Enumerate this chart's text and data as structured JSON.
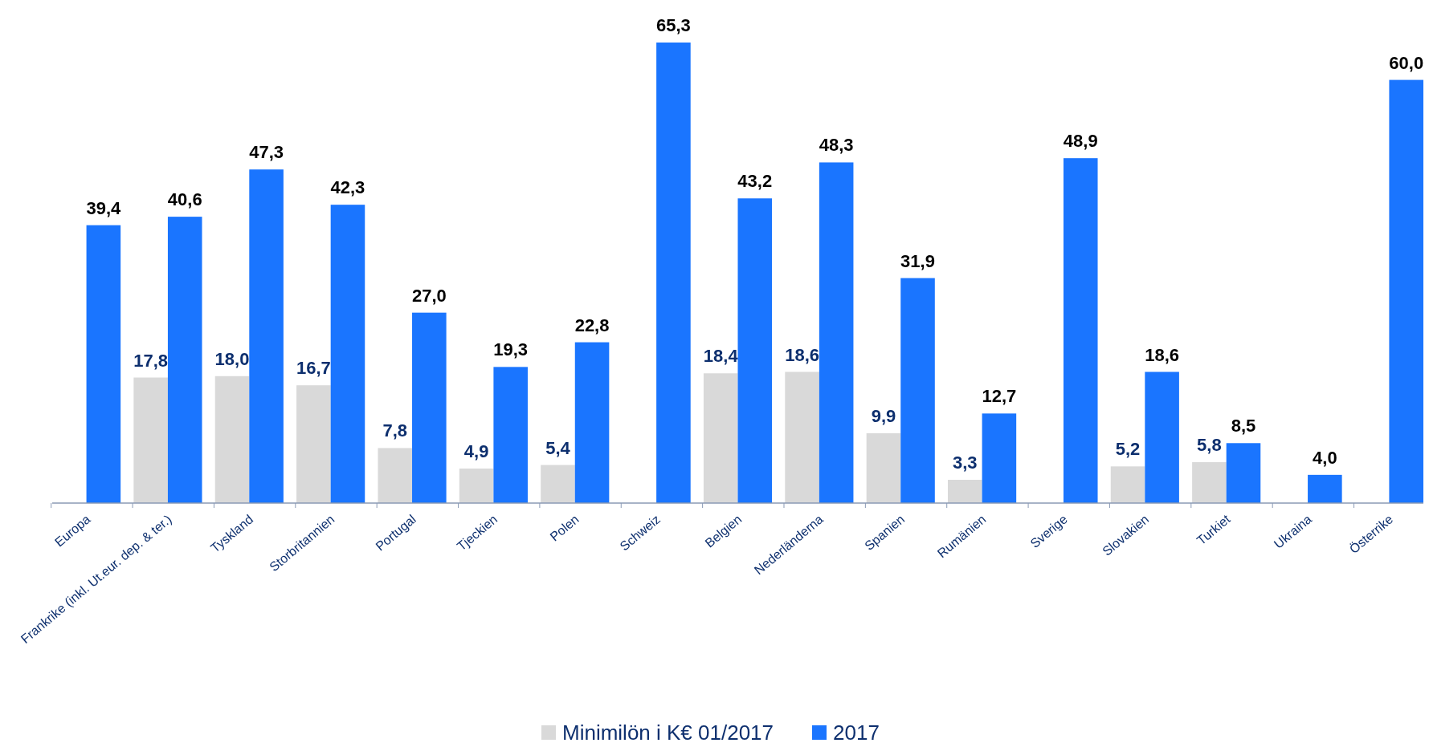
{
  "chart_data": {
    "type": "bar",
    "categories": [
      "Europa",
      "Frankrike (inkl. Ut.eur. dep. & ter.)",
      "Tyskland",
      "Storbritannien",
      "Portugal",
      "Tjeckien",
      "Polen",
      "Schweiz",
      "Belgien",
      "Nederländerna",
      "Spanien",
      "Rumänien",
      "Sverige",
      "Slovakien",
      "Turkiet",
      "Ukraina",
      "Österrike"
    ],
    "series": [
      {
        "name": "Minimilön i K€ 01/2017",
        "color": "#d9d9d9",
        "values": [
          null,
          17.8,
          18.0,
          16.7,
          7.8,
          4.9,
          5.4,
          null,
          18.4,
          18.6,
          9.9,
          3.3,
          null,
          5.2,
          5.8,
          null,
          null
        ],
        "value_labels": [
          null,
          "17,8",
          "18,0",
          "16,7",
          "7,8",
          "4,9",
          "5,4",
          null,
          "18,4",
          "18,6",
          "9,9",
          "3,3",
          null,
          "5,2",
          "5,8",
          null,
          null
        ]
      },
      {
        "name": "2017",
        "color": "#1a75ff",
        "values": [
          39.4,
          40.6,
          47.3,
          42.3,
          27.0,
          19.3,
          22.8,
          65.3,
          43.2,
          48.3,
          31.9,
          12.7,
          48.9,
          18.6,
          8.5,
          4.0,
          60.0
        ],
        "value_labels": [
          "39,4",
          "40,6",
          "47,3",
          "42,3",
          "27,0",
          "19,3",
          "22,8",
          "65,3",
          "43,2",
          "48,3",
          "31,9",
          "12,7",
          "48,9",
          "18,6",
          "8,5",
          "4,0",
          "60,0"
        ]
      }
    ],
    "legend": "bottom"
  }
}
